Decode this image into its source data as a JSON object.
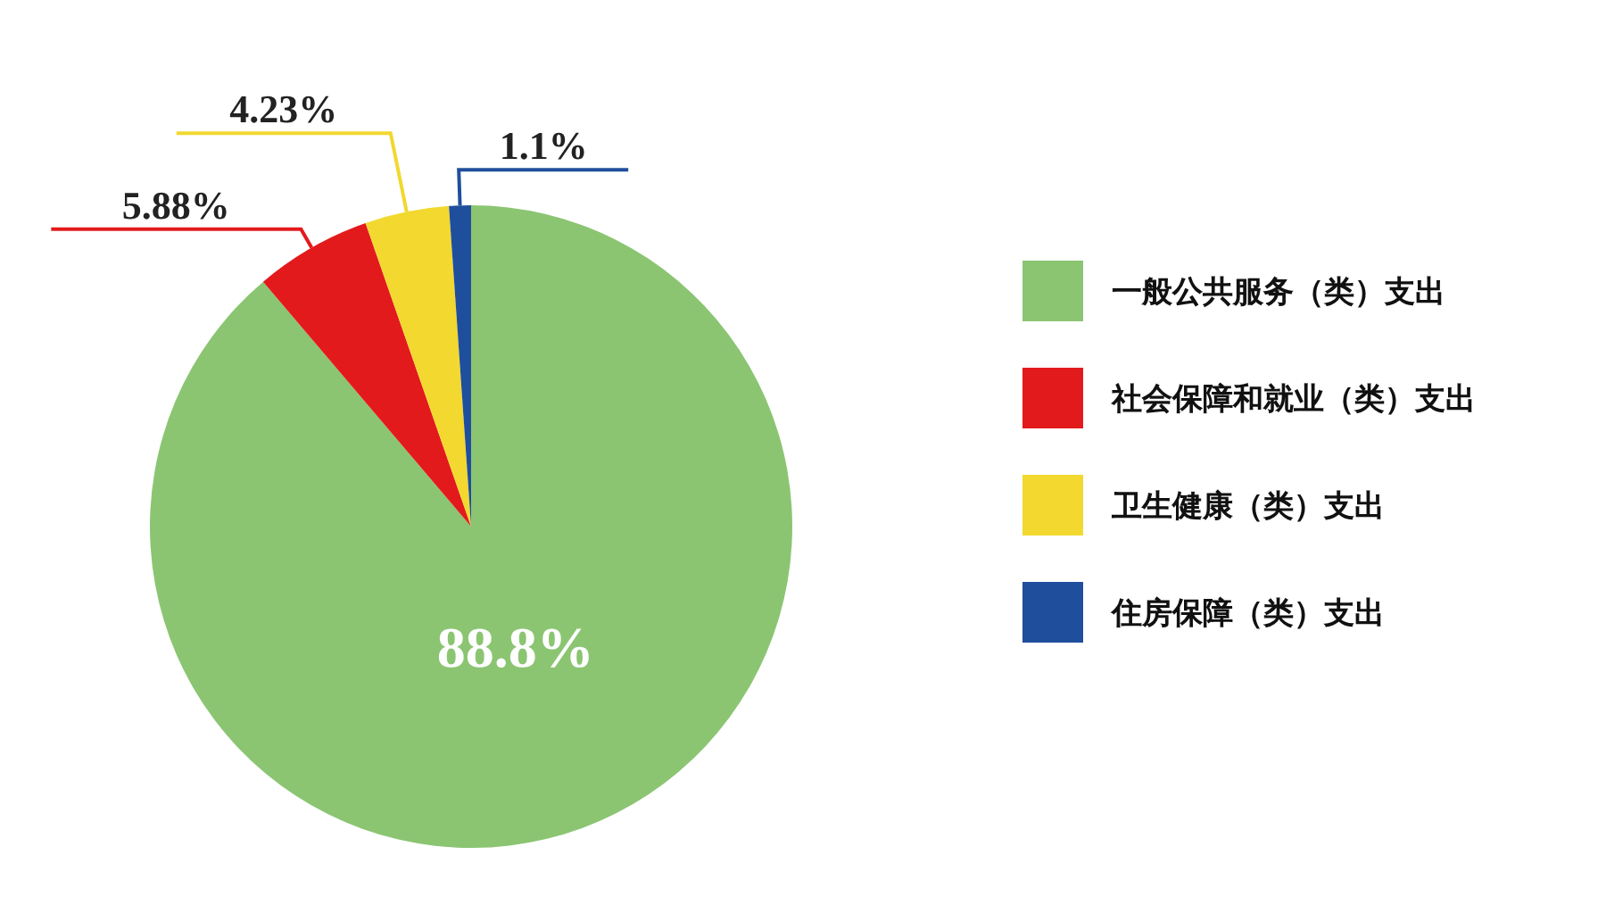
{
  "chart_data": {
    "type": "pie",
    "categories": [
      "一般公共服务（类）支出",
      "社会保障和就业（类）支出",
      "卫生健康（类）支出",
      "住房保障（类）支出"
    ],
    "values": [
      88.8,
      5.88,
      4.23,
      1.1
    ],
    "colors": [
      "#8bc572",
      "#e31a1c",
      "#f2d82f",
      "#1f4e9c"
    ],
    "value_labels": [
      "88.8%",
      "5.88%",
      "4.23%",
      "1.1%"
    ],
    "legend": "right"
  }
}
